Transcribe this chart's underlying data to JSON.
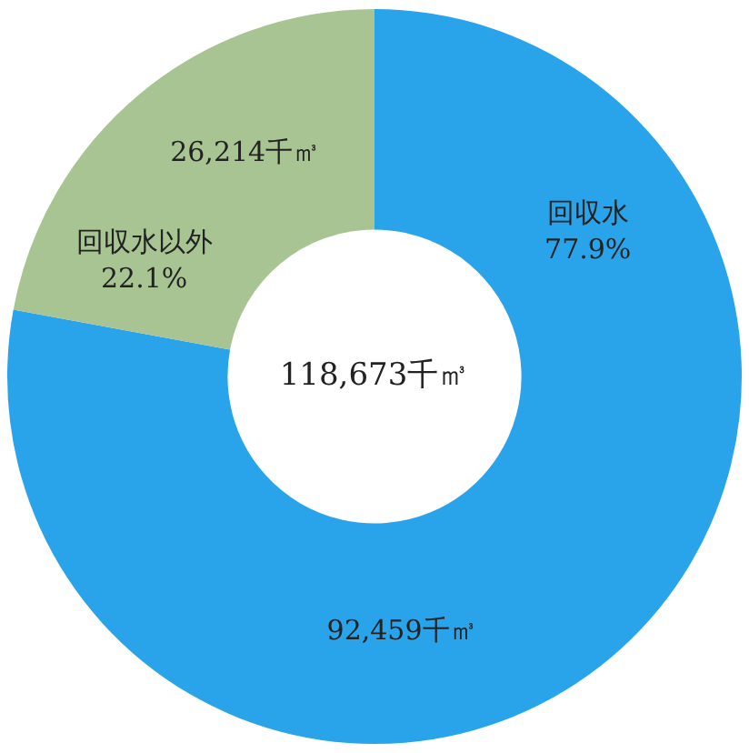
{
  "chart_data": {
    "type": "donut",
    "categories": [
      "回収水",
      "回収水以外"
    ],
    "values": [
      92459,
      26214
    ],
    "colors": [
      "#29a3ea",
      "#a8c492"
    ],
    "value_labels": [
      "92,459千㎥",
      "26,214千㎥"
    ],
    "annotations": [
      {
        "text": "77.9%",
        "x": "回収水"
      },
      {
        "text": "22.1%",
        "x": "回収水以外"
      },
      "118,673千㎥"
    ]
  }
}
